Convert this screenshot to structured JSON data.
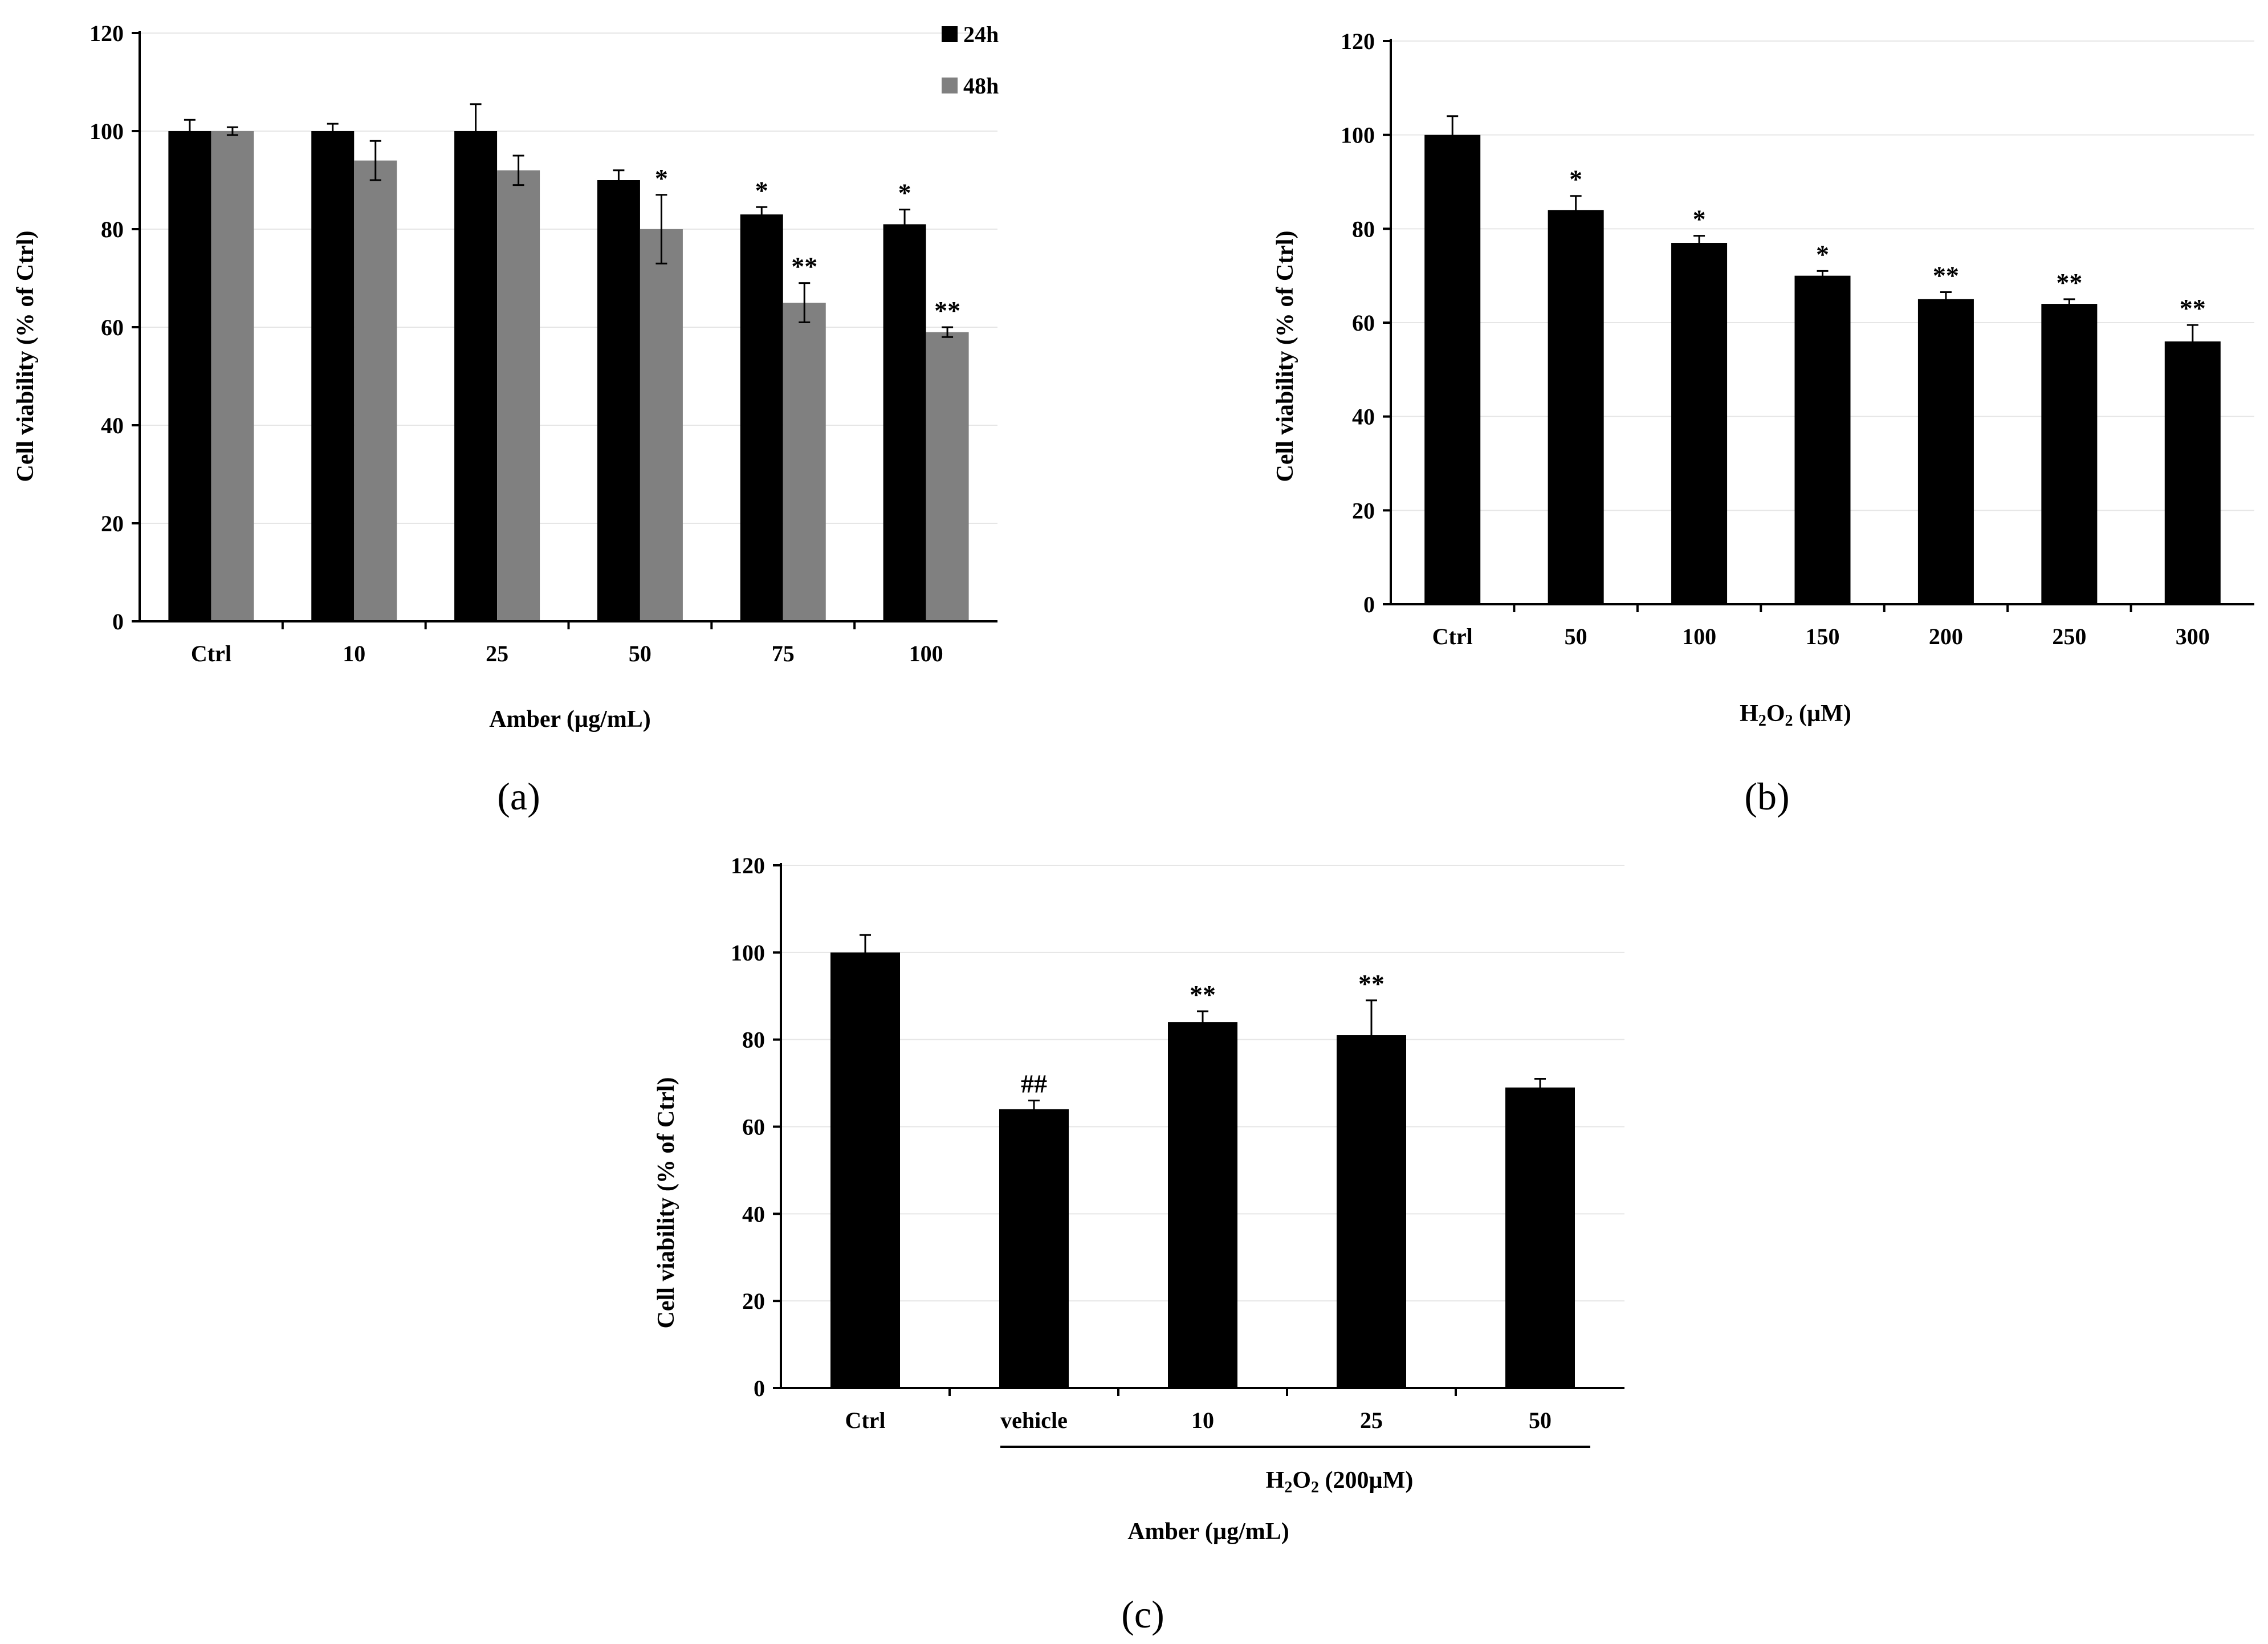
{
  "chart_data": [
    {
      "type": "bar",
      "panel": "(a)",
      "categories": [
        "Ctrl",
        "10",
        "25",
        "50",
        "75",
        "100"
      ],
      "series": [
        {
          "name": "24h",
          "color": "#000000",
          "values": [
            100,
            100,
            100,
            90,
            83,
            81
          ],
          "errors": [
            2.3,
            1.5,
            5.5,
            2,
            1.5,
            3
          ],
          "annotations": [
            "",
            "",
            "",
            "",
            "*",
            "*"
          ]
        },
        {
          "name": "48h",
          "color": "#808080",
          "values": [
            100,
            94,
            92,
            80,
            65,
            59
          ],
          "errors": [
            0.8,
            4,
            3,
            7,
            4,
            1
          ],
          "annotations": [
            "",
            "",
            "",
            "*",
            "**",
            "**"
          ]
        }
      ],
      "xlabel": "Amber (µg/mL)",
      "ylabel": "Cell viability (% of Ctrl)",
      "ylim": [
        0,
        120
      ],
      "yticks": [
        "0",
        "20",
        "40",
        "60",
        "80",
        "100",
        "120"
      ],
      "legend": "top-right",
      "grid": true
    },
    {
      "type": "bar",
      "panel": "(b)",
      "categories": [
        "Ctrl",
        "50",
        "100",
        "150",
        "200",
        "250",
        "300"
      ],
      "series": [
        {
          "name": "",
          "color": "#000000",
          "values": [
            100,
            84,
            77,
            70,
            65,
            64,
            56
          ],
          "errors": [
            4,
            3,
            1.5,
            1,
            1.5,
            1,
            3.5
          ],
          "annotations": [
            "",
            "*",
            "*",
            "*",
            "**",
            "**",
            "**"
          ]
        }
      ],
      "xlabel_main": "H",
      "xlabel_sub1": "2",
      "xlabel_mid": "O",
      "xlabel_sub2": "2",
      "xlabel_rest": " (µM)",
      "ylabel": "Cell viability (% of Ctrl)",
      "ylim": [
        0,
        120
      ],
      "yticks": [
        "0",
        "20",
        "40",
        "60",
        "80",
        "100",
        "120"
      ],
      "grid": true
    },
    {
      "type": "bar",
      "panel": "(c)",
      "categories": [
        "Ctrl",
        "vehicle",
        "10",
        "25",
        "50"
      ],
      "series": [
        {
          "name": "",
          "color": "#000000",
          "values": [
            100,
            64,
            84,
            81,
            69
          ],
          "errors": [
            4,
            2,
            2.5,
            8,
            2
          ],
          "annotations": [
            "",
            "##",
            "**",
            "**",
            ""
          ]
        }
      ],
      "group_label_main": "H",
      "group_label_sub1": "2",
      "group_label_mid": "O",
      "group_label_sub2": "2",
      "group_label_rest": " (200µM)",
      "xlabel": "Amber (µg/mL)",
      "ylabel": "Cell viability (% of Ctrl)",
      "ylim": [
        0,
        120
      ],
      "yticks": [
        "0",
        "20",
        "40",
        "60",
        "80",
        "100",
        "120"
      ],
      "grid": true
    }
  ]
}
